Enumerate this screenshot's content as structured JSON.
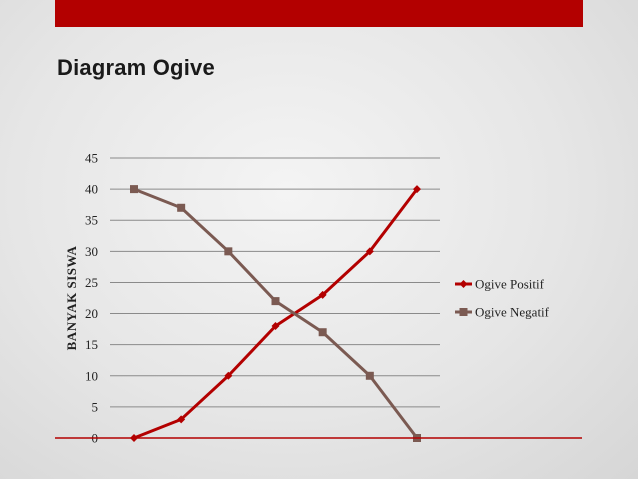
{
  "slide": {
    "title": "Diagram Ogive",
    "accent_color": "#b30000"
  },
  "chart_data": {
    "type": "line",
    "title": "",
    "xlabel": "",
    "ylabel": "BANYAK SISWA",
    "ylim": [
      0,
      45
    ],
    "yticks": [
      0,
      5,
      10,
      15,
      20,
      25,
      30,
      35,
      40,
      45
    ],
    "x": [
      1,
      2,
      3,
      4,
      5,
      6,
      7
    ],
    "grid": true,
    "legend_position": "right",
    "series": [
      {
        "name": "Ogive Positif",
        "values": [
          0,
          3,
          10,
          18,
          23,
          30,
          40
        ],
        "color": "#b30000",
        "marker": "diamond"
      },
      {
        "name": "Ogive Negatif",
        "values": [
          40,
          37,
          30,
          22,
          17,
          10,
          0
        ],
        "color": "#7b5a52",
        "marker": "square"
      }
    ]
  }
}
